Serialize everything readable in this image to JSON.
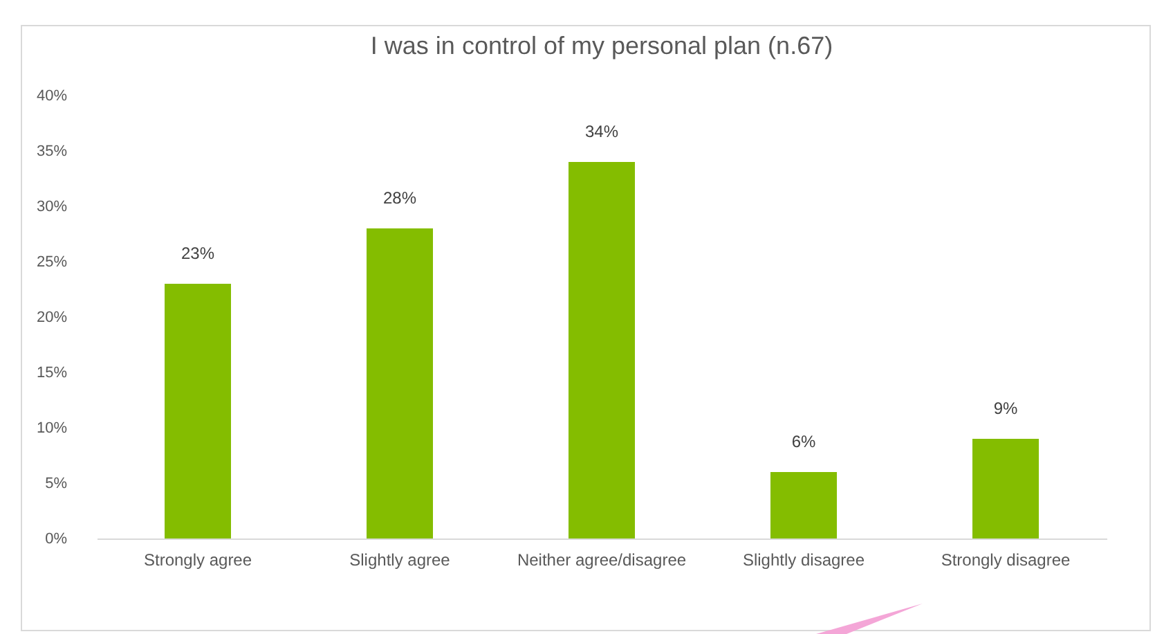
{
  "chart_data": {
    "type": "bar",
    "title": "I was in control of my personal plan (n.67)",
    "categories": [
      "Strongly agree",
      "Slightly agree",
      "Neither agree/disagree",
      "Slightly disagree",
      "Strongly disagree"
    ],
    "values": [
      23,
      28,
      34,
      6,
      9
    ],
    "value_labels": [
      "23%",
      "28%",
      "34%",
      "6%",
      "9%"
    ],
    "color": "#84bd00",
    "ylim": [
      0,
      40
    ],
    "yticks": [
      {
        "value": 0,
        "label": "0%"
      },
      {
        "value": 5,
        "label": "5%"
      },
      {
        "value": 10,
        "label": "10%"
      },
      {
        "value": 15,
        "label": "15%"
      },
      {
        "value": 20,
        "label": "20%"
      },
      {
        "value": 25,
        "label": "25%"
      },
      {
        "value": 30,
        "label": "30%"
      },
      {
        "value": 35,
        "label": "35%"
      },
      {
        "value": 40,
        "label": "40%"
      }
    ],
    "grid": false
  }
}
